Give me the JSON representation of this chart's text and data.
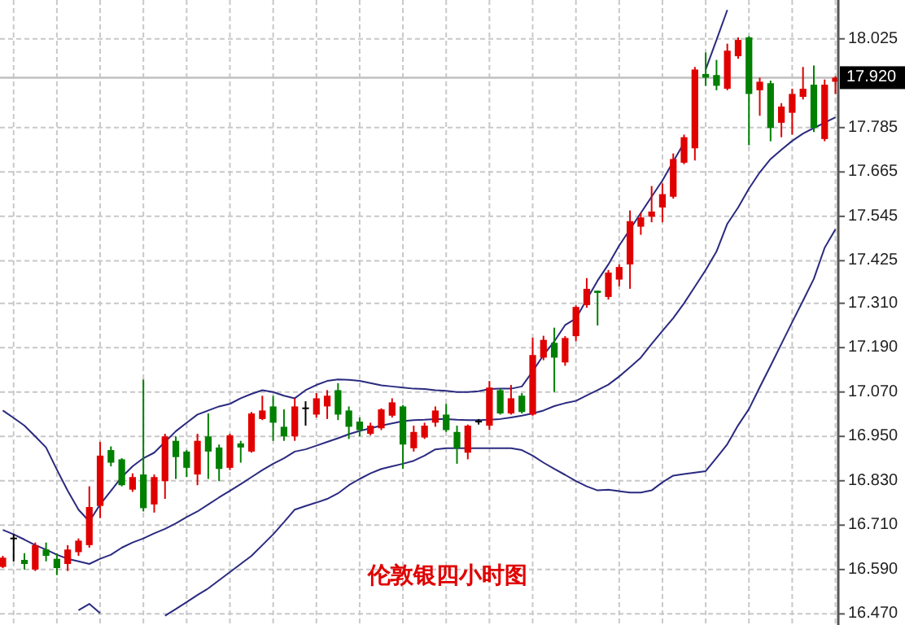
{
  "chart_data": {
    "type": "candlestick",
    "title": "伦敦银四小时图",
    "categories": [
      null,
      null,
      null,
      null,
      null,
      null,
      null,
      null,
      null,
      null,
      null,
      null,
      null,
      null,
      null,
      null,
      null,
      null,
      null,
      null,
      null,
      null,
      null,
      null,
      null,
      null,
      null,
      null,
      null,
      null,
      null,
      null,
      null,
      null,
      null,
      null,
      null,
      null,
      null,
      null,
      null,
      null,
      null,
      null,
      null,
      null,
      null,
      null,
      null,
      null,
      null,
      null,
      null,
      null,
      null,
      null,
      null,
      null,
      null,
      null,
      null,
      null,
      null,
      null,
      null,
      null,
      null,
      null,
      null,
      null,
      null,
      null,
      null,
      null,
      null,
      null,
      null,
      null
    ],
    "ohlc": [
      [
        16.597,
        16.627,
        16.594,
        16.622
      ],
      [
        16.674,
        16.685,
        16.612,
        16.674
      ],
      [
        16.616,
        16.634,
        16.59,
        16.605
      ],
      [
        16.59,
        16.663,
        16.586,
        16.656
      ],
      [
        16.644,
        16.663,
        16.612,
        16.627
      ],
      [
        16.619,
        16.634,
        16.575,
        16.594
      ],
      [
        16.605,
        16.656,
        16.586,
        16.644
      ],
      [
        16.637,
        16.674,
        16.627,
        16.668
      ],
      [
        16.656,
        16.815,
        16.649,
        16.759
      ],
      [
        16.762,
        16.935,
        16.729,
        16.898
      ],
      [
        16.913,
        16.923,
        16.869,
        16.879
      ],
      [
        16.888,
        16.891,
        16.815,
        16.818
      ],
      [
        16.806,
        16.85,
        16.8,
        16.84
      ],
      [
        16.847,
        17.104,
        16.747,
        16.756
      ],
      [
        16.766,
        16.847,
        16.744,
        16.84
      ],
      [
        16.829,
        16.957,
        16.781,
        16.95
      ],
      [
        16.938,
        16.95,
        16.835,
        16.894
      ],
      [
        16.909,
        16.913,
        16.84,
        16.865
      ],
      [
        16.847,
        16.957,
        16.818,
        16.938
      ],
      [
        16.95,
        17.012,
        16.835,
        16.909
      ],
      [
        16.92,
        16.928,
        16.829,
        16.862
      ],
      [
        16.865,
        16.957,
        16.859,
        16.953
      ],
      [
        16.931,
        16.938,
        16.879,
        16.92
      ],
      [
        16.909,
        17.016,
        16.906,
        17.012
      ],
      [
        16.997,
        17.06,
        16.994,
        17.02
      ],
      [
        17.031,
        17.06,
        16.938,
        16.987
      ],
      [
        16.976,
        17.023,
        16.938,
        16.95
      ],
      [
        16.95,
        17.053,
        16.938,
        17.031
      ],
      [
        17.026,
        17.045,
        16.979,
        17.026
      ],
      [
        17.009,
        17.067,
        17.001,
        17.053
      ],
      [
        17.031,
        17.075,
        16.997,
        17.06
      ],
      [
        17.075,
        17.094,
        16.994,
        17.009
      ],
      [
        17.02,
        17.031,
        16.943,
        16.976
      ],
      [
        16.99,
        17.001,
        16.95,
        16.967
      ],
      [
        16.957,
        16.987,
        16.953,
        16.979
      ],
      [
        16.972,
        17.026,
        16.967,
        17.023
      ],
      [
        17.006,
        17.053,
        17.001,
        17.042
      ],
      [
        17.031,
        17.035,
        16.862,
        16.928
      ],
      [
        16.918,
        16.979,
        16.909,
        16.962
      ],
      [
        16.947,
        16.987,
        16.943,
        16.979
      ],
      [
        16.987,
        17.031,
        16.976,
        17.02
      ],
      [
        17.009,
        17.038,
        16.962,
        16.967
      ],
      [
        16.962,
        16.979,
        16.876,
        16.918
      ],
      [
        16.906,
        16.982,
        16.888,
        16.979
      ],
      [
        16.99,
        16.997,
        16.982,
        16.99
      ],
      [
        16.979,
        17.1,
        16.967,
        17.082
      ],
      [
        17.075,
        17.079,
        17.009,
        17.012
      ],
      [
        17.012,
        17.089,
        17.009,
        17.053
      ],
      [
        17.06,
        17.067,
        17.012,
        17.016
      ],
      [
        17.009,
        17.217,
        17.006,
        17.17
      ],
      [
        17.163,
        17.222,
        17.156,
        17.211
      ],
      [
        17.203,
        17.244,
        17.07,
        17.163
      ],
      [
        17.15,
        17.221,
        17.141,
        17.216
      ],
      [
        17.221,
        17.304,
        17.207,
        17.3
      ],
      [
        17.305,
        17.378,
        17.298,
        17.349
      ],
      [
        17.344,
        17.344,
        17.25,
        17.338
      ],
      [
        17.327,
        17.4,
        17.32,
        17.393
      ],
      [
        17.374,
        17.415,
        17.356,
        17.408
      ],
      [
        17.415,
        17.561,
        17.349,
        17.532
      ],
      [
        17.517,
        17.554,
        17.495,
        17.542
      ],
      [
        17.544,
        17.627,
        17.529,
        17.558
      ],
      [
        17.569,
        17.634,
        17.529,
        17.605
      ],
      [
        17.598,
        17.715,
        17.593,
        17.7
      ],
      [
        17.69,
        17.766,
        17.686,
        17.759
      ],
      [
        17.729,
        17.949,
        17.696,
        17.942
      ],
      [
        17.93,
        17.988,
        17.898,
        17.92
      ],
      [
        17.927,
        17.968,
        17.886,
        17.898
      ],
      [
        17.89,
        18.012,
        17.886,
        17.993
      ],
      [
        17.978,
        18.029,
        17.971,
        18.022
      ],
      [
        18.029,
        18.032,
        17.737,
        17.876
      ],
      [
        17.886,
        17.92,
        17.817,
        17.909
      ],
      [
        17.905,
        17.912,
        17.748,
        17.784
      ],
      [
        17.798,
        17.851,
        17.759,
        17.842
      ],
      [
        17.825,
        17.89,
        17.766,
        17.876
      ],
      [
        17.868,
        17.949,
        17.861,
        17.89
      ],
      [
        17.901,
        17.953,
        17.773,
        17.784
      ],
      [
        17.754,
        17.915,
        17.748,
        17.901
      ],
      [
        17.909,
        17.924,
        17.876,
        17.92
      ]
    ],
    "colors": [
      "#e00000",
      "#000000",
      "#008000",
      "#e00000",
      "#008000",
      "#008000",
      "#e00000",
      "#e00000",
      "#e00000",
      "#e00000",
      "#008000",
      "#008000",
      "#e00000",
      "#008000",
      "#e00000",
      "#e00000",
      "#008000",
      "#008000",
      "#e00000",
      "#008000",
      "#008000",
      "#e00000",
      "#008000",
      "#e00000",
      "#e00000",
      "#008000",
      "#008000",
      "#e00000",
      "#000000",
      "#e00000",
      "#e00000",
      "#008000",
      "#008000",
      "#008000",
      "#e00000",
      "#e00000",
      "#e00000",
      "#008000",
      "#e00000",
      "#e00000",
      "#e00000",
      "#008000",
      "#008000",
      "#e00000",
      "#000000",
      "#e00000",
      "#008000",
      "#e00000",
      "#008000",
      "#e00000",
      "#e00000",
      "#008000",
      "#e00000",
      "#e00000",
      "#e00000",
      "#008000",
      "#e00000",
      "#e00000",
      "#e00000",
      "#e00000",
      "#e00000",
      "#e00000",
      "#e00000",
      "#e00000",
      "#e00000",
      "#008000",
      "#008000",
      "#e00000",
      "#e00000",
      "#008000",
      "#e00000",
      "#008000",
      "#e00000",
      "#e00000",
      "#e00000",
      "#008000",
      "#e00000",
      "#e00000"
    ],
    "series": [
      {
        "type": "line",
        "color": "#2a2a80",
        "values": [
          17.02,
          17.0,
          16.979,
          16.95,
          16.92,
          16.86,
          16.803,
          16.752,
          16.72,
          16.766,
          16.803,
          16.84,
          16.869,
          16.891,
          16.906,
          16.935,
          16.964,
          16.987,
          17.009,
          17.02,
          17.031,
          17.038,
          17.053,
          17.065,
          17.075,
          17.07,
          17.06,
          17.053,
          17.075,
          17.089,
          17.1,
          17.104,
          17.103,
          17.1,
          17.094,
          17.088,
          17.085,
          17.082,
          17.079,
          17.078,
          17.075,
          17.073,
          17.07,
          17.07,
          17.072,
          17.078,
          17.079,
          17.079,
          17.085,
          17.126,
          17.17,
          17.207,
          17.251,
          17.269,
          17.32,
          17.371,
          17.415,
          17.466,
          17.51,
          17.554,
          17.598,
          17.642,
          17.693,
          17.744,
          null,
          17.942,
          18.022,
          18.103,
          null,
          null,
          null,
          null,
          null,
          null,
          null,
          null,
          null,
          null
        ]
      },
      {
        "type": "line",
        "color": "#2a2a80",
        "values": [
          16.697,
          16.685,
          16.671,
          16.656,
          16.644,
          16.63,
          16.619,
          16.612,
          16.605,
          16.619,
          16.63,
          16.649,
          16.663,
          16.674,
          16.688,
          16.7,
          16.715,
          16.732,
          16.747,
          16.766,
          16.785,
          16.803,
          16.821,
          16.84,
          16.859,
          16.876,
          16.891,
          16.909,
          16.915,
          16.925,
          16.935,
          16.945,
          16.956,
          16.965,
          16.972,
          16.979,
          16.985,
          16.991,
          16.994,
          16.995,
          16.997,
          16.997,
          16.995,
          16.994,
          16.994,
          16.995,
          16.997,
          17.001,
          17.006,
          17.012,
          17.02,
          17.032,
          17.04,
          17.046,
          17.061,
          17.075,
          17.09,
          17.112,
          17.137,
          17.163,
          17.2,
          17.235,
          17.27,
          17.31,
          17.355,
          17.4,
          17.45,
          17.525,
          17.569,
          17.62,
          17.664,
          17.7,
          17.725,
          17.749,
          17.769,
          17.784,
          17.798,
          17.813
        ]
      },
      {
        "type": "line",
        "color": "#2a2a80",
        "values": [
          null,
          null,
          null,
          null,
          null,
          null,
          null,
          16.48,
          16.497,
          16.472,
          null,
          null,
          null,
          null,
          null,
          16.465,
          16.483,
          16.502,
          16.521,
          16.539,
          16.561,
          16.583,
          16.605,
          16.627,
          16.656,
          16.685,
          16.718,
          16.752,
          16.762,
          16.771,
          16.781,
          16.796,
          16.818,
          16.835,
          16.85,
          16.862,
          16.869,
          16.876,
          16.884,
          16.898,
          16.915,
          16.918,
          16.918,
          16.918,
          16.918,
          16.918,
          16.918,
          16.918,
          16.913,
          16.898,
          16.879,
          16.862,
          16.846,
          16.829,
          16.815,
          16.804,
          16.806,
          16.802,
          16.798,
          16.798,
          16.804,
          16.826,
          16.844,
          16.848,
          16.852,
          16.856,
          16.892,
          16.929,
          16.98,
          17.024,
          17.083,
          17.141,
          17.2,
          17.259,
          17.317,
          17.376,
          17.46,
          17.51
        ]
      }
    ],
    "ylim": [
      16.44,
      18.13
    ],
    "yticks": [
      18.025,
      17.785,
      17.665,
      17.545,
      17.425,
      {
        "value": 17.31,
        "label": "17.310"
      },
      {
        "value": 17.19,
        "label": "17.190"
      },
      {
        "value": 17.07,
        "label": "17.070"
      },
      {
        "value": 16.95,
        "label": "16.950"
      },
      {
        "value": 16.83,
        "label": "16.830"
      },
      {
        "value": 16.71,
        "label": "16.710"
      },
      {
        "value": 16.59,
        "label": "16.590"
      },
      {
        "value": 16.47,
        "label": "16.470"
      }
    ],
    "ref_lines": [
      {
        "axis": "y",
        "value": 17.92,
        "label": "17.920",
        "color": "#c0c0c0"
      }
    ],
    "grid": true
  }
}
